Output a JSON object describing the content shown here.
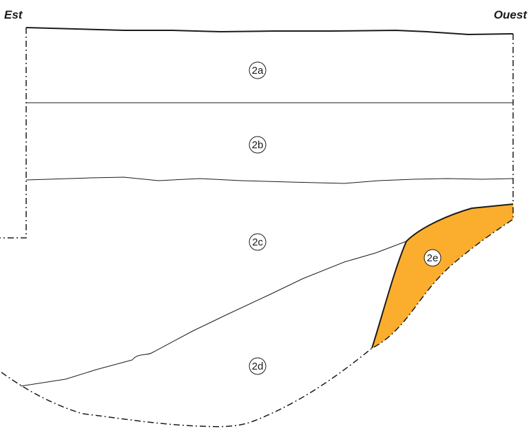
{
  "orientation": {
    "left": "Est",
    "right": "Ouest"
  },
  "zones": [
    {
      "id": "2a",
      "label": "2a"
    },
    {
      "id": "2b",
      "label": "2b"
    },
    {
      "id": "2c",
      "label": "2c"
    },
    {
      "id": "2d",
      "label": "2d"
    },
    {
      "id": "2e",
      "label": "2e"
    }
  ],
  "colors": {
    "zone_2e_fill": "#FBAE2E",
    "line": "#1a1a1a"
  }
}
